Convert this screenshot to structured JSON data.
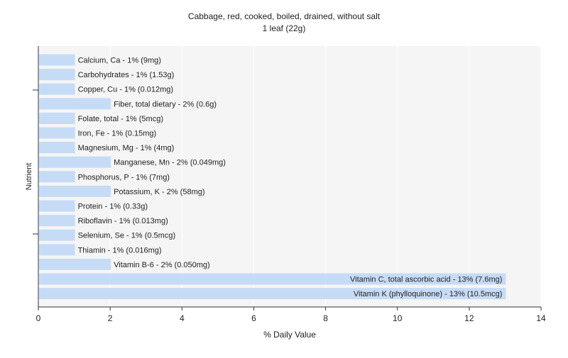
{
  "chart_data": {
    "type": "bar",
    "orientation": "horizontal",
    "title": "Cabbage, red, cooked, boiled, drained, without salt",
    "subtitle": "1 leaf (22g)",
    "xlabel": "% Daily Value",
    "ylabel": "Nutrient",
    "xlim": [
      0,
      14
    ],
    "xticks": [
      "0",
      "2",
      "4",
      "6",
      "8",
      "10",
      "12",
      "14"
    ],
    "grid": "vertical",
    "bar_color": "#c6dcf6",
    "plot_background": "#f5f5f5",
    "categories": [
      "Calcium, Ca",
      "Carbohydrates",
      "Copper, Cu",
      "Fiber, total dietary",
      "Folate, total",
      "Iron, Fe",
      "Magnesium, Mg",
      "Manganese, Mn",
      "Phosphorus, P",
      "Potassium, K",
      "Protein",
      "Riboflavin",
      "Selenium, Se",
      "Thiamin",
      "Vitamin B-6",
      "Vitamin C, total ascorbic acid",
      "Vitamin K (phylloquinone)"
    ],
    "values": [
      1,
      1,
      1,
      2,
      1,
      1,
      1,
      2,
      1,
      2,
      1,
      1,
      1,
      1,
      2,
      13,
      13
    ],
    "labels": [
      "Calcium, Ca - 1% (9mg)",
      "Carbohydrates - 1% (1.53g)",
      "Copper, Cu - 1% (0.012mg)",
      "Fiber, total dietary - 2% (0.6g)",
      "Folate, total - 1% (5mcg)",
      "Iron, Fe - 1% (0.15mg)",
      "Magnesium, Mg - 1% (4mg)",
      "Manganese, Mn - 2% (0.049mg)",
      "Phosphorus, P - 1% (7mg)",
      "Potassium, K - 2% (58mg)",
      "Protein - 1% (0.33g)",
      "Riboflavin - 1% (0.013mg)",
      "Selenium, Se - 1% (0.5mcg)",
      "Thiamin - 1% (0.016mg)",
      "Vitamin B-6 - 2% (0.050mg)",
      "Vitamin C, total ascorbic acid - 13% (7.6mg)",
      "Vitamin K (phylloquinone) - 13% (10.5mcg)"
    ]
  }
}
